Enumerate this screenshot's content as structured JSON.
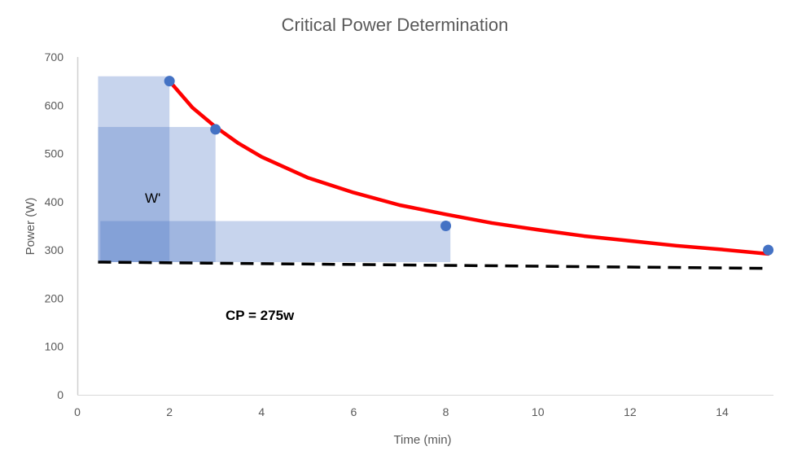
{
  "chart_data": {
    "type": "scatter",
    "title": "Critical Power Determination",
    "xlabel": "Time (min)",
    "ylabel": "Power (W)",
    "xlim": [
      0,
      15
    ],
    "ylim": [
      0,
      700
    ],
    "x_ticks": [
      0,
      2,
      4,
      6,
      8,
      10,
      12,
      14
    ],
    "y_ticks": [
      0,
      100,
      200,
      300,
      400,
      500,
      600,
      700
    ],
    "grid": false,
    "points": [
      {
        "x": 2,
        "y": 650
      },
      {
        "x": 3,
        "y": 550
      },
      {
        "x": 8,
        "y": 350
      },
      {
        "x": 15,
        "y": 300
      }
    ],
    "point_color": "#4472C4",
    "fit_curve": {
      "color": "#FF0000",
      "x": [
        2,
        2.5,
        3,
        3.5,
        4,
        5,
        6,
        7,
        8,
        9,
        10,
        11,
        12,
        13,
        14,
        15
      ],
      "y": [
        650,
        595,
        555,
        521,
        493,
        450,
        419,
        393,
        374,
        356,
        342,
        329,
        319,
        309,
        301,
        292
      ]
    },
    "cp_line": {
      "color": "#000000",
      "style": "dashed",
      "x": [
        0.45,
        15
      ],
      "y": [
        275,
        262
      ]
    },
    "w_prime_rects": [
      {
        "x0": 0.45,
        "x1": 2,
        "y0": 275,
        "y1": 660
      },
      {
        "x0": 0.45,
        "x1": 3,
        "y0": 275,
        "y1": 555
      },
      {
        "x0": 0.5,
        "x1": 8.1,
        "y0": 275,
        "y1": 360
      }
    ],
    "rect_color": "#4472C4",
    "annotations": {
      "w_prime": "W'",
      "cp": "CP = 275w"
    }
  }
}
